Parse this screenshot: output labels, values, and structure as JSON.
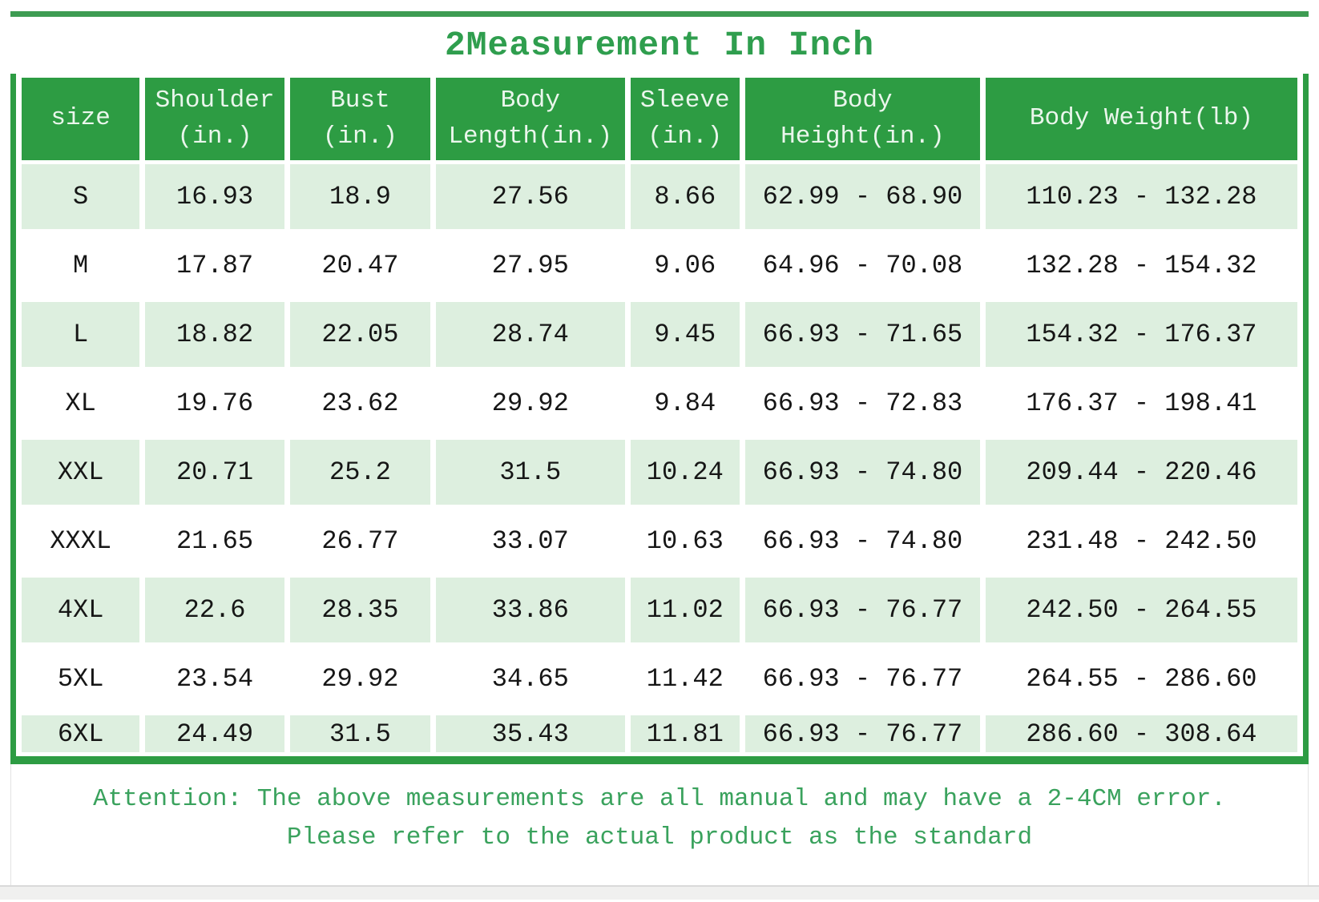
{
  "title": "2Measurement In Inch",
  "colors": {
    "header_green": "#2d9c43",
    "row_light_green": "#ddefdf",
    "rule_green": "#3d9c52",
    "title_text_green": "#2f9e4e",
    "note_text_green": "#3aa25d"
  },
  "table": {
    "headers": [
      [
        "size"
      ],
      [
        "Shoulder",
        "(in.)"
      ],
      [
        "Bust",
        "(in.)"
      ],
      [
        "Body",
        "Length(in.)"
      ],
      [
        "Sleeve",
        "(in.)"
      ],
      [
        "Body",
        "Height(in.)"
      ],
      [
        "Body Weight(lb)"
      ]
    ],
    "column_widths_percent": [
      9.5,
      11.2,
      11.3,
      15.2,
      8.8,
      18.9,
      25.1
    ],
    "rows": [
      {
        "size": "S",
        "values": [
          "16.93",
          "18.9",
          "27.56",
          "8.66",
          "62.99 - 68.90",
          "110.23 - 132.28"
        ]
      },
      {
        "size": "M",
        "values": [
          "17.87",
          "20.47",
          "27.95",
          "9.06",
          "64.96 - 70.08",
          "132.28 - 154.32"
        ]
      },
      {
        "size": "L",
        "values": [
          "18.82",
          "22.05",
          "28.74",
          "9.45",
          "66.93 - 71.65",
          "154.32 - 176.37"
        ]
      },
      {
        "size": "XL",
        "values": [
          "19.76",
          "23.62",
          "29.92",
          "9.84",
          "66.93 - 72.83",
          "176.37 - 198.41"
        ]
      },
      {
        "size": "XXL",
        "values": [
          "20.71",
          "25.2",
          "31.5",
          "10.24",
          "66.93 - 74.80",
          "209.44 - 220.46"
        ]
      },
      {
        "size": "XXXL",
        "values": [
          "21.65",
          "26.77",
          "33.07",
          "10.63",
          "66.93 - 74.80",
          "231.48 - 242.50"
        ]
      },
      {
        "size": "4XL",
        "values": [
          "22.6",
          "28.35",
          "33.86",
          "11.02",
          "66.93 - 76.77",
          "242.50 - 264.55"
        ]
      },
      {
        "size": "5XL",
        "values": [
          "23.54",
          "29.92",
          "34.65",
          "11.42",
          "66.93 - 76.77",
          "264.55 - 286.60"
        ]
      },
      {
        "size": "6XL",
        "values": [
          "24.49",
          "31.5",
          "35.43",
          "11.81",
          "66.93 - 76.77",
          "286.60 - 308.64"
        ]
      }
    ]
  },
  "attention": {
    "line1": "Attention: The above measurements are all manual and may have a 2-4CM error.",
    "line2": "Please refer to the actual product as the standard"
  }
}
